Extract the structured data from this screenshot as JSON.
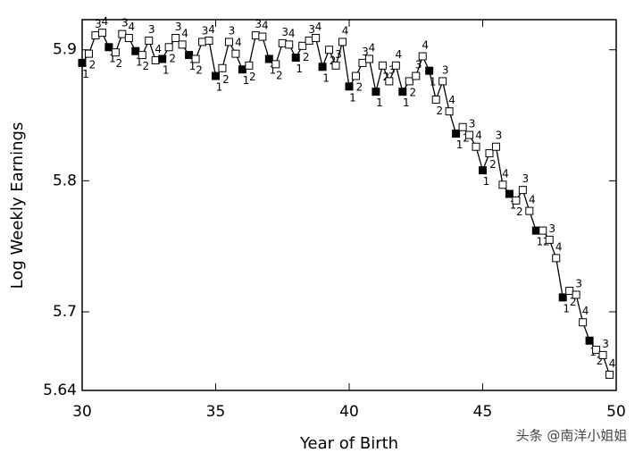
{
  "chart_data": {
    "type": "line",
    "x_label": "Year of Birth",
    "y_label": "Log Weekly Earnings",
    "x": [
      30,
      30.25,
      30.5,
      30.75,
      31,
      31.25,
      31.5,
      31.75,
      32,
      32.25,
      32.5,
      32.75,
      33,
      33.25,
      33.5,
      33.75,
      34,
      34.25,
      34.5,
      34.75,
      35,
      35.25,
      35.5,
      35.75,
      36,
      36.25,
      36.5,
      36.75,
      37,
      37.25,
      37.5,
      37.75,
      38,
      38.25,
      38.5,
      38.75,
      39,
      39.25,
      39.5,
      39.75,
      40,
      40.25,
      40.5,
      40.75,
      41,
      41.25,
      41.5,
      41.75,
      42,
      42.25,
      42.5,
      42.75,
      43,
      43.25,
      43.5,
      43.75,
      44,
      44.25,
      44.5,
      44.75,
      45,
      45.25,
      45.5,
      45.75,
      46,
      46.25,
      46.5,
      46.75,
      47,
      47.25,
      47.5,
      47.75,
      48,
      48.25,
      48.5,
      48.75,
      49,
      49.25,
      49.5,
      49.75
    ],
    "values": [
      5.89,
      5.897,
      5.911,
      5.913,
      5.902,
      5.898,
      5.912,
      5.909,
      5.899,
      5.896,
      5.907,
      5.892,
      5.893,
      5.902,
      5.909,
      5.904,
      5.896,
      5.893,
      5.906,
      5.907,
      5.88,
      5.886,
      5.906,
      5.897,
      5.885,
      5.888,
      5.911,
      5.91,
      5.893,
      5.889,
      5.905,
      5.904,
      5.894,
      5.903,
      5.907,
      5.909,
      5.887,
      5.9,
      5.888,
      5.906,
      5.872,
      5.88,
      5.89,
      5.893,
      5.868,
      5.888,
      5.876,
      5.888,
      5.868,
      5.876,
      5.88,
      5.895,
      5.884,
      5.862,
      5.876,
      5.853,
      5.836,
      5.841,
      5.835,
      5.826,
      5.808,
      5.821,
      5.826,
      5.797,
      5.79,
      5.785,
      5.793,
      5.777,
      5.762,
      5.762,
      5.755,
      5.741,
      5.711,
      5.716,
      5.713,
      5.692,
      5.678,
      5.671,
      5.667,
      5.652
    ],
    "quarters": [
      1,
      2,
      3,
      4,
      1,
      2,
      3,
      4,
      1,
      2,
      3,
      4,
      1,
      2,
      3,
      4,
      1,
      2,
      3,
      4,
      1,
      2,
      3,
      4,
      1,
      2,
      3,
      4,
      1,
      2,
      3,
      4,
      1,
      2,
      3,
      4,
      1,
      2,
      3,
      4,
      1,
      2,
      3,
      4,
      1,
      2,
      3,
      4,
      1,
      2,
      3,
      4,
      1,
      2,
      3,
      4,
      1,
      2,
      3,
      4,
      1,
      2,
      3,
      4,
      1,
      2,
      3,
      4,
      1,
      2,
      3,
      4,
      1,
      2,
      3,
      4,
      1,
      2,
      3,
      4
    ],
    "color": "#000000",
    "xlim": [
      30,
      50
    ],
    "xticks": [
      30,
      35,
      40,
      45,
      50
    ],
    "ylim": [
      5.64,
      5.923
    ],
    "yticks": [
      5.64,
      5.7,
      5.8,
      5.9
    ],
    "watermark": "头条 @南洋小姐姐"
  }
}
